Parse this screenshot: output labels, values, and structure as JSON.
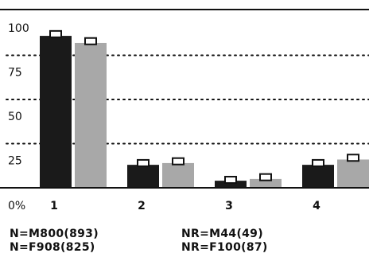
{
  "chart_data": {
    "type": "bar",
    "categories": [
      "1",
      "2",
      "3",
      "4"
    ],
    "series": [
      {
        "values": [
          86,
          13,
          4,
          13
        ],
        "color": "#1a1a1a",
        "marker": [
          87,
          14,
          4.5,
          14
        ]
      },
      {
        "values": [
          82,
          14,
          5,
          16
        ],
        "color": "#a8a8a8",
        "marker": [
          83,
          15,
          6,
          17
        ]
      }
    ],
    "ylim": [
      0,
      100
    ],
    "yticks": [
      0,
      25,
      50,
      75,
      100
    ],
    "ytick_labels": [
      "0%",
      "25",
      "50",
      "75",
      "100"
    ],
    "grid": "dotted"
  },
  "footnotes": {
    "n_male": "N=M800(893)",
    "n_female": "N=F908(825)",
    "nr_male": "NR=M44(49)",
    "nr_female": "NR=F100(87)"
  }
}
